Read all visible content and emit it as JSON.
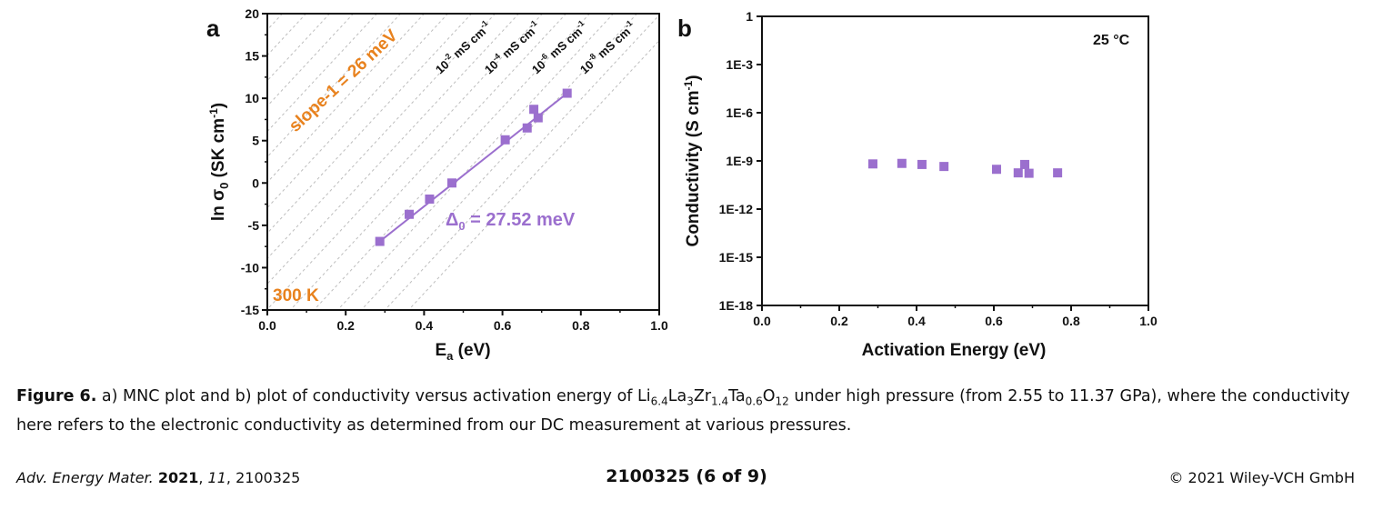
{
  "chart_data": [
    {
      "panel": "a",
      "type": "scatter",
      "xlabel_main": "E",
      "xlabel_sub": "a",
      "xlabel_unit": " (eV)",
      "ylabel_main": "ln σ",
      "ylabel_sub": "0",
      "ylabel_unit": " (SK cm",
      "ylabel_sup": "-1",
      "ylabel_close": ")",
      "xlim": [
        0.0,
        1.0
      ],
      "ylim": [
        -15,
        20
      ],
      "xticks": [
        "0.0",
        "0.2",
        "0.4",
        "0.6",
        "0.8",
        "1.0"
      ],
      "yticks": [
        "-15",
        "-10",
        "-5",
        "0",
        "5",
        "10",
        "15",
        "20"
      ],
      "color": "#9b6fce",
      "points": [
        [
          0.287,
          -6.9
        ],
        [
          0.362,
          -3.7
        ],
        [
          0.414,
          -1.9
        ],
        [
          0.471,
          0.0
        ],
        [
          0.607,
          5.1
        ],
        [
          0.663,
          6.5
        ],
        [
          0.68,
          8.7
        ],
        [
          0.691,
          7.7
        ],
        [
          0.765,
          10.6
        ]
      ],
      "fit_line": [
        [
          0.287,
          -6.9
        ],
        [
          0.765,
          10.6
        ]
      ],
      "fit_label": "Δ",
      "fit_label_sub": "0",
      "fit_label_rest": " = 27.52 meV",
      "slope_label": "slope-1 = 26 meV",
      "temperature_label": "300 K",
      "iso_lines": [
        {
          "base": "10",
          "exp": "-2",
          "unit": " mS cm",
          "unit_exp": "-1"
        },
        {
          "base": "10",
          "exp": "-4",
          "unit": " mS cm",
          "unit_exp": "-1"
        },
        {
          "base": "10",
          "exp": "-6",
          "unit": " mS cm",
          "unit_exp": "-1"
        },
        {
          "base": "10",
          "exp": "-8",
          "unit": " mS cm",
          "unit_exp": "-1"
        }
      ],
      "accent": "#e8821e",
      "grid": "diagonal dashed iso-conductivity lines"
    },
    {
      "panel": "b",
      "type": "scatter",
      "xlabel": "Activation Energy (eV)",
      "ylabel_main": "Conductivity (S cm",
      "ylabel_sup": "-1",
      "ylabel_close": ")",
      "xlim": [
        0.0,
        1.0
      ],
      "ylim_log10": [
        -18,
        0
      ],
      "yscale": "log",
      "xticks": [
        "0.0",
        "0.2",
        "0.4",
        "0.6",
        "0.8",
        "1.0"
      ],
      "yticks": [
        "1E-18",
        "1E-15",
        "1E-12",
        "1E-9",
        "1E-6",
        "1E-3",
        "1"
      ],
      "color": "#9b6fce",
      "points": [
        [
          0.287,
          6.5e-10
        ],
        [
          0.362,
          7e-10
        ],
        [
          0.414,
          6e-10
        ],
        [
          0.471,
          4.5e-10
        ],
        [
          0.607,
          3e-10
        ],
        [
          0.663,
          1.8e-10
        ],
        [
          0.68,
          6e-10
        ],
        [
          0.691,
          1.7e-10
        ],
        [
          0.765,
          1.8e-10
        ]
      ],
      "annotation": "25 °C",
      "grid": false
    }
  ],
  "caption": {
    "label": "Figure 6.",
    "text_1": " a) MNC plot and b) plot of conductivity versus activation energy of ",
    "formula": [
      {
        "t": "Li",
        "s": "6.4"
      },
      {
        "t": "La",
        "s": "3"
      },
      {
        "t": "Zr",
        "s": "1.4"
      },
      {
        "t": "Ta",
        "s": "0.6"
      },
      {
        "t": "O",
        "s": "12"
      }
    ],
    "text_2": " under high pressure (from 2.55 to 11.37 GPa), where the conductivity here refers to the electronic conductivity as determined from our DC measurement at various pressures."
  },
  "footer": {
    "journal": "Adv. Energy Mater.",
    "year": "2021",
    "volume": "11",
    "article": "2100325",
    "page": "2100325  (6 of 9)",
    "copyright": "© 2021 Wiley-VCH GmbH"
  }
}
